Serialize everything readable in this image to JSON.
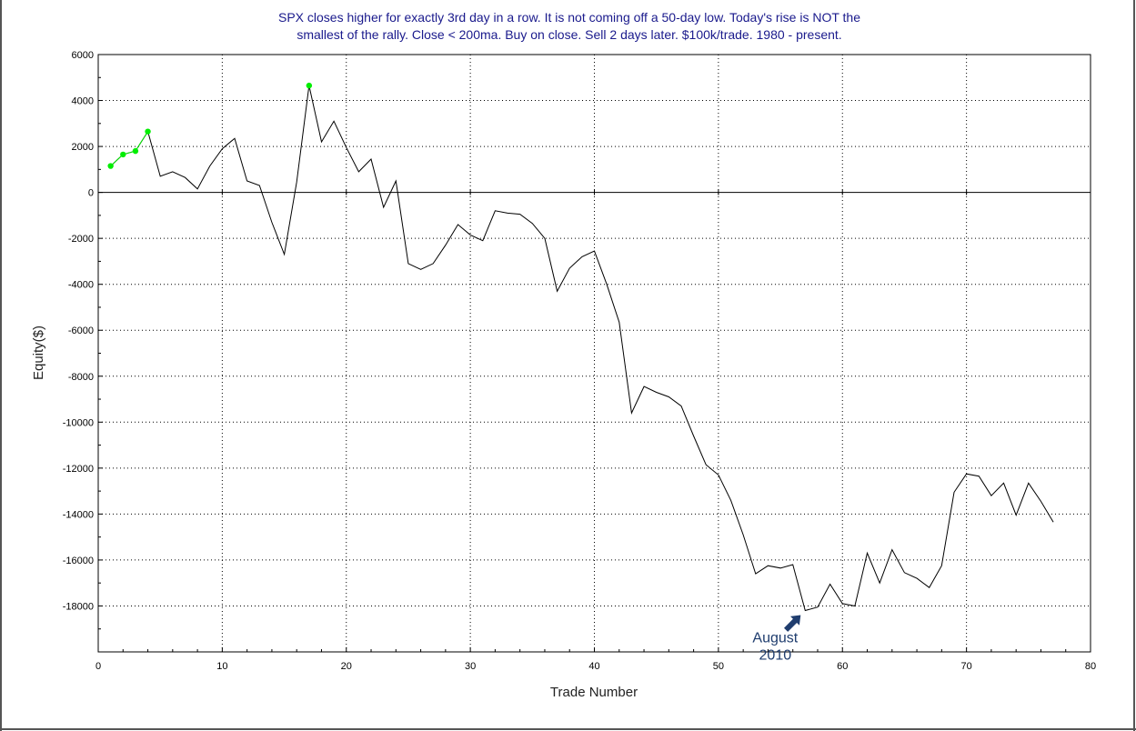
{
  "chart_data": {
    "type": "line",
    "title": [
      "SPX closes higher for exactly 3rd day in a row. It is not coming off a 50-day low. Today's rise is NOT the",
      "smallest of the rally. Close < 200ma. Buy on close. Sell 2 days later. $100k/trade. 1980 - present."
    ],
    "xlabel": "Trade Number",
    "ylabel": "Equity($)",
    "xlim": [
      0,
      80
    ],
    "ylim": [
      -20000,
      6000
    ],
    "x_ticks": [
      0,
      10,
      20,
      30,
      40,
      50,
      60,
      70,
      80
    ],
    "y_ticks": [
      6000,
      4000,
      2000,
      0,
      -2000,
      -4000,
      -6000,
      -8000,
      -10000,
      -12000,
      -14000,
      -16000,
      -18000
    ],
    "grid": true,
    "line_color": "#000000",
    "highlight_color": "#00ee00",
    "zero_line": true,
    "series": [
      {
        "x": [
          1,
          2,
          3,
          4,
          5,
          6,
          7,
          8,
          9,
          10,
          11,
          12,
          13,
          14,
          15,
          16,
          17,
          18,
          19,
          20,
          21,
          22,
          23,
          24,
          25,
          26,
          27,
          28,
          29,
          30,
          31,
          32,
          33,
          34,
          35,
          36,
          37,
          38,
          39,
          40,
          41,
          42,
          43,
          44,
          45,
          46,
          47,
          48,
          49,
          50,
          51,
          52,
          53,
          54,
          55,
          56,
          57,
          58,
          59,
          60,
          61,
          62,
          63,
          64,
          65,
          66,
          67,
          68,
          69,
          70,
          71,
          72,
          73,
          74,
          75,
          76,
          77
        ],
        "y": [
          1150,
          1650,
          1800,
          2650,
          700,
          900,
          650,
          150,
          1150,
          1900,
          2350,
          500,
          300,
          -1300,
          -2700,
          450,
          4650,
          2200,
          3100,
          1950,
          900,
          1450,
          -650,
          500,
          -3100,
          -3350,
          -3100,
          -2300,
          -1400,
          -1850,
          -2100,
          -800,
          -900,
          -950,
          -1350,
          -2000,
          -4300,
          -3300,
          -2800,
          -2550,
          -4000,
          -5650,
          -9600,
          -8450,
          -8700,
          -8900,
          -9300,
          -10600,
          -11850,
          -12300,
          -13400,
          -14900,
          -16600,
          -16250,
          -16350,
          -16200,
          -18200,
          -18050,
          -17050,
          -17900,
          -18000,
          -15700,
          -17000,
          -15550,
          -16550,
          -16800,
          -17200,
          -16250,
          -13050,
          -12250,
          -12350,
          -13200,
          -12650,
          -14050,
          -12650,
          -13450,
          -14350
        ]
      }
    ],
    "highlight_points": [
      {
        "x": 1,
        "y": 1150
      },
      {
        "x": 2,
        "y": 1650
      },
      {
        "x": 3,
        "y": 1800
      },
      {
        "x": 4,
        "y": 2650
      },
      {
        "x": 17,
        "y": 4650
      }
    ],
    "annotations": [
      {
        "lines": [
          "August",
          "2010"
        ],
        "points_to": {
          "x": 57,
          "y": -18200
        },
        "color": "#1f3d6e"
      }
    ]
  }
}
